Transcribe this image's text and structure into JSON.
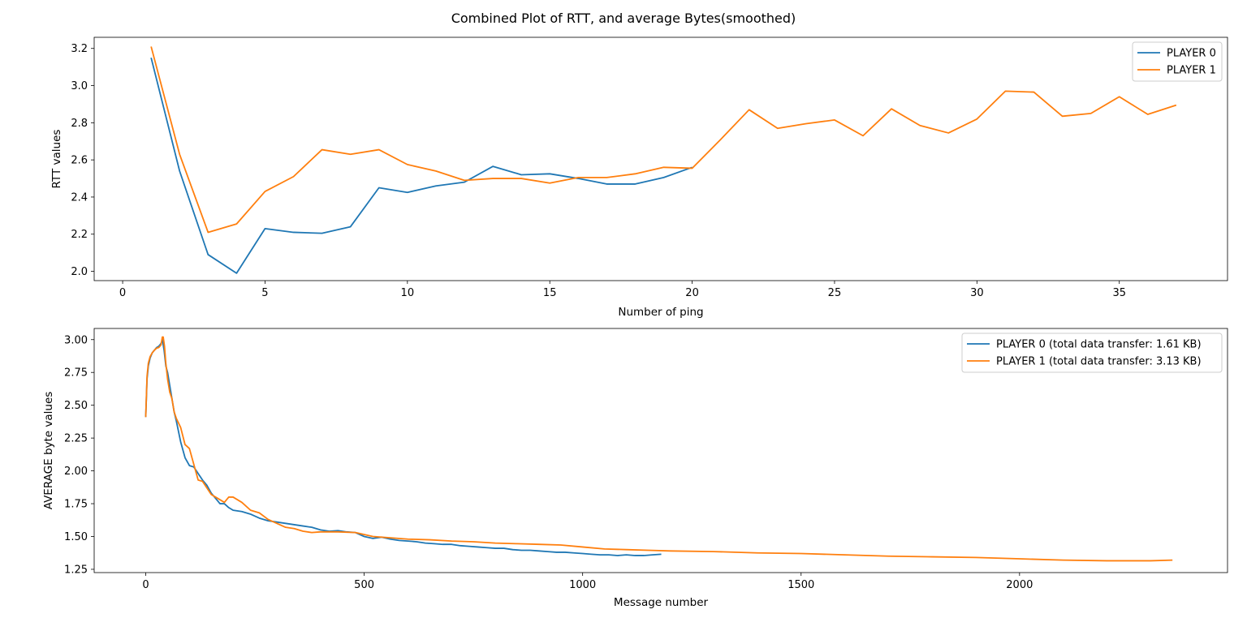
{
  "figure": {
    "suptitle": "Combined Plot of RTT, and average Bytes(smoothed)"
  },
  "colors": {
    "series0": "#1f77b4",
    "series1": "#ff7f0e",
    "frame": "#000000",
    "legend_border": "#cccccc"
  },
  "chart_data": [
    {
      "type": "line",
      "xlabel": "Number of ping",
      "ylabel": "RTT values",
      "xlim": [
        -1,
        38.8
      ],
      "ylim": [
        1.95,
        3.26
      ],
      "xticks": [
        0,
        5,
        10,
        15,
        20,
        25,
        30,
        35
      ],
      "yticks": [
        2.0,
        2.2,
        2.4,
        2.6,
        2.8,
        3.0,
        3.2
      ],
      "ytick_format": 1,
      "grid": false,
      "legend_position": "top-right",
      "series": [
        {
          "name": "PLAYER 0",
          "x": [
            1,
            2,
            3,
            4,
            5,
            6,
            7,
            8,
            9,
            10,
            11,
            12,
            13,
            14,
            15,
            16,
            17,
            18,
            19,
            20
          ],
          "values": [
            3.15,
            2.54,
            2.09,
            1.99,
            2.23,
            2.21,
            2.205,
            2.24,
            2.45,
            2.425,
            2.46,
            2.48,
            2.565,
            2.52,
            2.525,
            2.5,
            2.47,
            2.47,
            2.505,
            2.56
          ]
        },
        {
          "name": "PLAYER 1",
          "x": [
            1,
            2,
            3,
            4,
            5,
            6,
            7,
            8,
            9,
            10,
            11,
            12,
            13,
            14,
            15,
            16,
            17,
            18,
            19,
            20,
            21,
            22,
            23,
            24,
            25,
            26,
            27,
            28,
            29,
            30,
            31,
            32,
            33,
            34,
            35,
            36,
            37
          ],
          "values": [
            3.21,
            2.63,
            2.21,
            2.255,
            2.43,
            2.51,
            2.655,
            2.63,
            2.655,
            2.575,
            2.54,
            2.49,
            2.5,
            2.5,
            2.475,
            2.505,
            2.505,
            2.525,
            2.56,
            2.555,
            2.71,
            2.87,
            2.77,
            2.795,
            2.815,
            2.73,
            2.875,
            2.785,
            2.745,
            2.82,
            2.97,
            2.965,
            2.835,
            2.85,
            2.94,
            2.845,
            2.895
          ]
        }
      ]
    },
    {
      "type": "line",
      "xlabel": "Message number",
      "ylabel": "AVERAGE byte values",
      "xlim": [
        -118,
        2476
      ],
      "ylim": [
        1.225,
        3.085
      ],
      "xticks": [
        0,
        500,
        1000,
        1500,
        2000
      ],
      "yticks": [
        1.25,
        1.5,
        1.75,
        2.0,
        2.25,
        2.5,
        2.75,
        3.0
      ],
      "ytick_format": 2,
      "grid": false,
      "legend_position": "top-right",
      "series": [
        {
          "name": "PLAYER 0 (total data transfer: 1.61 KB)",
          "x": [
            0,
            3,
            6,
            10,
            15,
            20,
            25,
            30,
            35,
            38,
            42,
            46,
            50,
            55,
            60,
            65,
            70,
            80,
            90,
            100,
            110,
            120,
            130,
            140,
            150,
            160,
            170,
            180,
            190,
            200,
            220,
            240,
            260,
            280,
            300,
            320,
            340,
            360,
            380,
            400,
            420,
            440,
            460,
            480,
            500,
            520,
            540,
            560,
            580,
            600,
            620,
            640,
            660,
            680,
            700,
            720,
            740,
            760,
            780,
            800,
            820,
            840,
            860,
            880,
            900,
            920,
            940,
            960,
            980,
            1000,
            1020,
            1040,
            1060,
            1080,
            1100,
            1120,
            1140,
            1160,
            1180
          ],
          "values": [
            2.41,
            2.7,
            2.8,
            2.86,
            2.9,
            2.92,
            2.94,
            2.95,
            2.97,
            3.0,
            2.92,
            2.8,
            2.75,
            2.65,
            2.55,
            2.45,
            2.38,
            2.22,
            2.1,
            2.04,
            2.03,
            1.98,
            1.93,
            1.89,
            1.83,
            1.79,
            1.75,
            1.75,
            1.72,
            1.7,
            1.69,
            1.67,
            1.64,
            1.62,
            1.61,
            1.6,
            1.59,
            1.58,
            1.57,
            1.55,
            1.54,
            1.545,
            1.535,
            1.53,
            1.5,
            1.485,
            1.495,
            1.48,
            1.47,
            1.465,
            1.46,
            1.45,
            1.445,
            1.44,
            1.44,
            1.43,
            1.425,
            1.42,
            1.415,
            1.41,
            1.41,
            1.4,
            1.395,
            1.395,
            1.39,
            1.385,
            1.38,
            1.38,
            1.375,
            1.37,
            1.365,
            1.36,
            1.36,
            1.355,
            1.36,
            1.355,
            1.355,
            1.36,
            1.365
          ]
        },
        {
          "name": "PLAYER 1 (total data transfer: 3.13 KB)",
          "x": [
            0,
            3,
            6,
            10,
            15,
            20,
            25,
            30,
            35,
            38,
            40,
            43,
            46,
            50,
            55,
            60,
            65,
            70,
            80,
            90,
            100,
            110,
            120,
            130,
            140,
            150,
            160,
            170,
            180,
            190,
            200,
            220,
            240,
            260,
            280,
            300,
            320,
            340,
            360,
            380,
            400,
            440,
            480,
            520,
            560,
            600,
            650,
            700,
            750,
            800,
            850,
            900,
            950,
            1000,
            1050,
            1100,
            1150,
            1200,
            1300,
            1400,
            1500,
            1600,
            1700,
            1800,
            1900,
            2000,
            2100,
            2200,
            2300,
            2350
          ],
          "values": [
            2.41,
            2.72,
            2.82,
            2.87,
            2.9,
            2.92,
            2.935,
            2.94,
            2.96,
            3.02,
            3.02,
            2.95,
            2.82,
            2.7,
            2.6,
            2.55,
            2.45,
            2.4,
            2.33,
            2.2,
            2.17,
            2.05,
            1.93,
            1.92,
            1.87,
            1.82,
            1.8,
            1.78,
            1.76,
            1.8,
            1.8,
            1.76,
            1.7,
            1.68,
            1.63,
            1.6,
            1.57,
            1.56,
            1.54,
            1.53,
            1.535,
            1.535,
            1.53,
            1.5,
            1.49,
            1.48,
            1.475,
            1.465,
            1.46,
            1.45,
            1.445,
            1.44,
            1.435,
            1.42,
            1.405,
            1.4,
            1.395,
            1.39,
            1.385,
            1.375,
            1.37,
            1.36,
            1.35,
            1.345,
            1.34,
            1.33,
            1.32,
            1.315,
            1.315,
            1.32
          ]
        }
      ]
    }
  ]
}
